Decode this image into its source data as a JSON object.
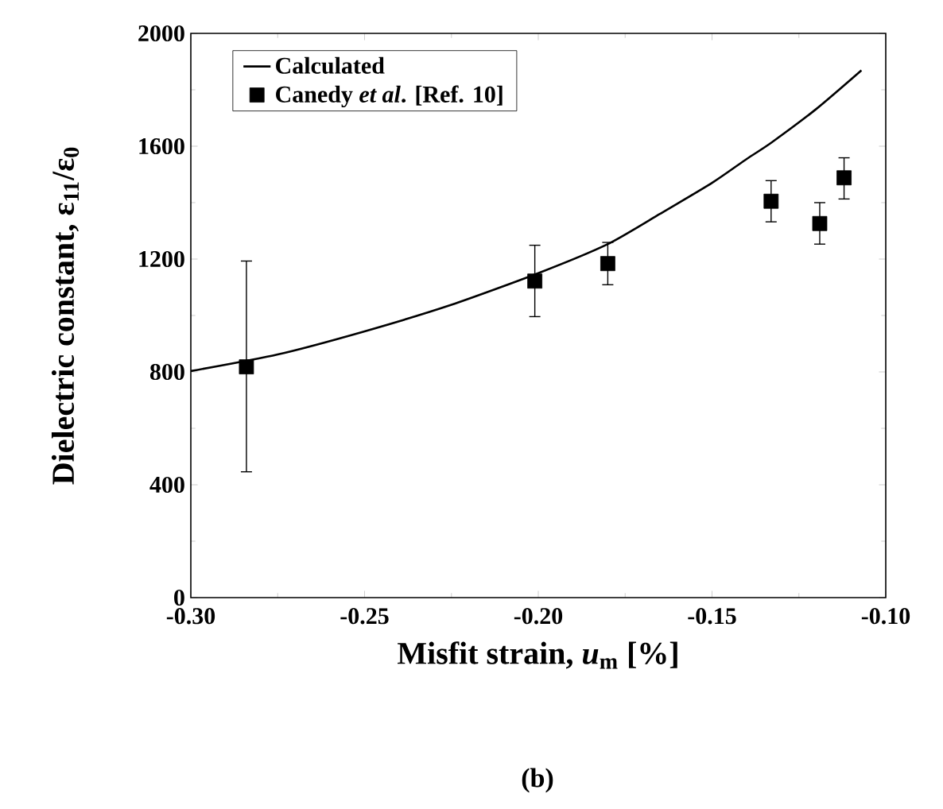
{
  "chart_data": {
    "type": "scatter",
    "xlabel": "Misfit strain, *u*$_{m}$ [%]",
    "ylabel": "Dielectric constant, ε$_{11}$/ε$_{0}$",
    "annotations": [
      "(b)"
    ],
    "xlim": [
      -0.3,
      -0.1
    ],
    "xticks": [
      {
        "value": -0.3,
        "label": "-0.30"
      },
      {
        "value": -0.25,
        "label": "-0.25"
      },
      {
        "value": -0.2,
        "label": "-0.20"
      },
      {
        "value": -0.15,
        "label": "-0.15"
      },
      {
        "value": -0.1,
        "label": "-0.10"
      }
    ],
    "ylim": [
      0,
      2000
    ],
    "yticks": [
      0,
      400,
      800,
      1200,
      1600,
      2000
    ],
    "grid": false,
    "legend": "top left",
    "marker": "square",
    "series": [
      {
        "name": "Calculated",
        "type": "line",
        "color": "#000000",
        "line_style": "solid",
        "marker": "none",
        "x": [
          -0.3,
          -0.275,
          -0.25,
          -0.225,
          -0.2,
          -0.18,
          -0.165,
          -0.15,
          -0.14,
          -0.133,
          -0.12,
          -0.107
        ],
        "values": [
          803,
          862,
          944,
          1038,
          1150,
          1253,
          1360,
          1470,
          1555,
          1612,
          1732,
          1869
        ]
      },
      {
        "name": "Canedy *et al*. [Ref. 10]",
        "color": "#000000",
        "x": [
          -0.284,
          -0.201,
          -0.18,
          -0.133,
          -0.119,
          -0.112
        ],
        "values": [
          818,
          1122,
          1184,
          1405,
          1326,
          1488
        ],
        "errors": [
          [
            446,
            1193
          ],
          [
            996,
            1249
          ],
          [
            1109,
            1259
          ],
          [
            1332,
            1478
          ],
          [
            1253,
            1400
          ],
          [
            1413,
            1559
          ]
        ]
      }
    ]
  }
}
